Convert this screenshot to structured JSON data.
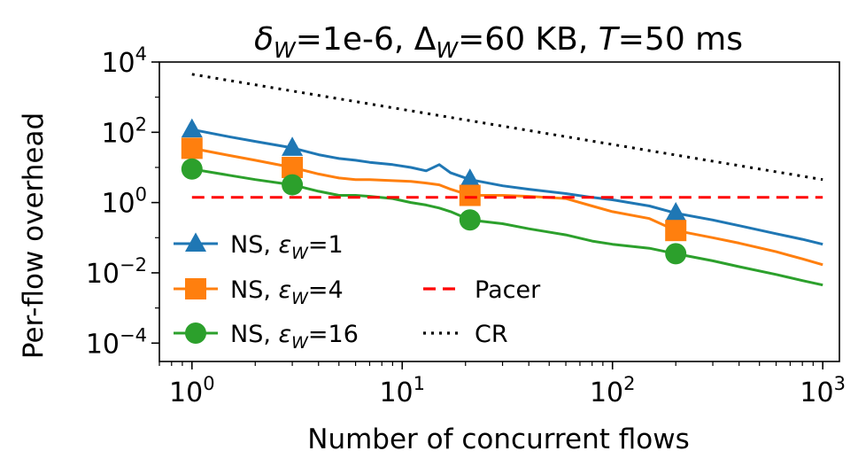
{
  "chart_data": {
    "type": "line",
    "title": {
      "delta_symbol": "δ",
      "delta_sub": "W",
      "delta_value": "=1e-6, ",
      "Delta_symbol": "Δ",
      "Delta_sub": "W",
      "Delta_value": "=60 KB, ",
      "T_symbol": "T",
      "T_value": "=50 ms"
    },
    "xlabel": "Number of concurrent flows",
    "ylabel": "Per-flow overhead",
    "xscale": "log",
    "yscale": "log",
    "xlim": [
      0.7,
      1200
    ],
    "ylim": [
      3e-05,
      10000
    ],
    "x_ticks": [
      {
        "value": 1,
        "base": "10",
        "exp": "0"
      },
      {
        "value": 10,
        "base": "10",
        "exp": "1"
      },
      {
        "value": 100,
        "base": "10",
        "exp": "2"
      },
      {
        "value": 1000,
        "base": "10",
        "exp": "3"
      }
    ],
    "y_ticks": [
      {
        "value": 0.0001,
        "base": "10",
        "exp": "−4"
      },
      {
        "value": 0.01,
        "base": "10",
        "exp": "−2"
      },
      {
        "value": 1,
        "base": "10",
        "exp": "0"
      },
      {
        "value": 100,
        "base": "10",
        "exp": "2"
      },
      {
        "value": 10000,
        "base": "10",
        "exp": "4"
      }
    ],
    "grid": false,
    "legend_placement": "lower-left",
    "series": [
      {
        "id": "ns1",
        "name_prefix": "NS, ",
        "eps_symbol": "ε",
        "eps_sub": "W",
        "eps_value": "=1",
        "color": "#1f77b4",
        "marker": "triangle",
        "line_style": "solid",
        "points": [
          [
            1,
            120
          ],
          [
            1.5,
            75
          ],
          [
            2,
            55
          ],
          [
            3,
            36
          ],
          [
            4,
            23
          ],
          [
            5,
            18
          ],
          [
            6,
            16
          ],
          [
            7,
            14
          ],
          [
            9,
            12
          ],
          [
            11,
            10
          ],
          [
            13,
            8
          ],
          [
            15,
            12
          ],
          [
            17,
            7
          ],
          [
            21,
            4.5
          ],
          [
            30,
            3
          ],
          [
            40,
            2.4
          ],
          [
            60,
            1.8
          ],
          [
            80,
            1.4
          ],
          [
            100,
            1.2
          ],
          [
            150,
            0.8
          ],
          [
            200,
            0.5
          ],
          [
            300,
            0.32
          ],
          [
            400,
            0.22
          ],
          [
            600,
            0.13
          ],
          [
            800,
            0.09
          ],
          [
            1000,
            0.065
          ]
        ],
        "marker_points": [
          [
            1,
            120
          ],
          [
            3,
            36
          ],
          [
            21,
            4.5
          ],
          [
            200,
            0.5
          ]
        ]
      },
      {
        "id": "ns4",
        "name_prefix": "NS, ",
        "eps_symbol": "ε",
        "eps_sub": "W",
        "eps_value": "=4",
        "color": "#ff7f0e",
        "marker": "square",
        "line_style": "solid",
        "points": [
          [
            1,
            35
          ],
          [
            1.5,
            22
          ],
          [
            2,
            16
          ],
          [
            3,
            10
          ],
          [
            4,
            6.5
          ],
          [
            5,
            5
          ],
          [
            6,
            4.5
          ],
          [
            7,
            4.5
          ],
          [
            9,
            4.2
          ],
          [
            11,
            4
          ],
          [
            13,
            3.6
          ],
          [
            15,
            3.2
          ],
          [
            17,
            2.4
          ],
          [
            21,
            1.6
          ],
          [
            30,
            1.6
          ],
          [
            40,
            1.5
          ],
          [
            60,
            1.3
          ],
          [
            80,
            0.8
          ],
          [
            100,
            0.55
          ],
          [
            150,
            0.35
          ],
          [
            200,
            0.16
          ],
          [
            300,
            0.1
          ],
          [
            400,
            0.07
          ],
          [
            600,
            0.04
          ],
          [
            800,
            0.025
          ],
          [
            1000,
            0.017
          ]
        ],
        "marker_points": [
          [
            1,
            35
          ],
          [
            3,
            10
          ],
          [
            21,
            1.6
          ],
          [
            200,
            0.16
          ]
        ]
      },
      {
        "id": "ns16",
        "name_prefix": "NS, ",
        "eps_symbol": "ε",
        "eps_sub": "W",
        "eps_value": "=16",
        "color": "#2ca02c",
        "marker": "circle",
        "line_style": "solid",
        "points": [
          [
            1,
            9
          ],
          [
            1.5,
            6
          ],
          [
            2,
            4.5
          ],
          [
            3,
            3.2
          ],
          [
            4,
            2.1
          ],
          [
            5,
            1.6
          ],
          [
            6,
            1.6
          ],
          [
            7,
            1.5
          ],
          [
            9,
            1.3
          ],
          [
            11,
            1
          ],
          [
            13,
            0.85
          ],
          [
            15,
            0.7
          ],
          [
            17,
            0.55
          ],
          [
            21,
            0.32
          ],
          [
            30,
            0.25
          ],
          [
            40,
            0.18
          ],
          [
            60,
            0.12
          ],
          [
            80,
            0.08
          ],
          [
            100,
            0.065
          ],
          [
            150,
            0.05
          ],
          [
            200,
            0.035
          ],
          [
            300,
            0.022
          ],
          [
            400,
            0.015
          ],
          [
            600,
            0.009
          ],
          [
            800,
            0.006
          ],
          [
            1000,
            0.0045
          ]
        ],
        "marker_points": [
          [
            1,
            9
          ],
          [
            3,
            3.2
          ],
          [
            21,
            0.32
          ],
          [
            200,
            0.035
          ]
        ]
      },
      {
        "id": "pacer",
        "name": "Pacer",
        "color": "#ff0000",
        "marker": "none",
        "line_style": "dashed",
        "points": [
          [
            1,
            1.4
          ],
          [
            1000,
            1.4
          ]
        ]
      },
      {
        "id": "cr",
        "name": "CR",
        "color": "#000000",
        "marker": "none",
        "line_style": "dotted",
        "points": [
          [
            1,
            4500
          ],
          [
            1000,
            4.5
          ]
        ]
      }
    ]
  }
}
